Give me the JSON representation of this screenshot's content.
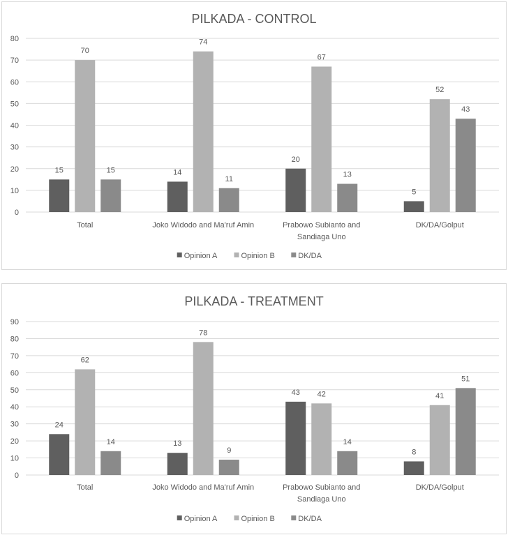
{
  "chart_data": [
    {
      "type": "bar",
      "title": "PILKADA - CONTROL",
      "categories": [
        [
          "Total"
        ],
        [
          "Joko Widodo and Ma'ruf Amin"
        ],
        [
          "Prabowo Subianto and",
          "Sandiaga Uno"
        ],
        [
          "DK/DA/Golput"
        ]
      ],
      "series": [
        {
          "name": "Opinion A",
          "color": "#5f5f5f",
          "values": [
            15,
            14,
            20,
            5
          ]
        },
        {
          "name": "Opinion B",
          "color": "#b2b2b2",
          "values": [
            70,
            74,
            67,
            52
          ]
        },
        {
          "name": "DK/DA",
          "color": "#8a8a8a",
          "values": [
            15,
            11,
            13,
            43
          ]
        }
      ],
      "ylim": [
        0,
        80
      ],
      "yticks": [
        0,
        10,
        20,
        30,
        40,
        50,
        60,
        70,
        80
      ],
      "grid": true,
      "legend": "bottom"
    },
    {
      "type": "bar",
      "title": "PILKADA - TREATMENT",
      "categories": [
        [
          "Total"
        ],
        [
          "Joko Widodo and Ma'ruf Amin"
        ],
        [
          "Prabowo Subianto and",
          "Sandiaga Uno"
        ],
        [
          "DK/DA/Golput"
        ]
      ],
      "series": [
        {
          "name": "Opinion A",
          "color": "#5f5f5f",
          "values": [
            24,
            13,
            43,
            8
          ]
        },
        {
          "name": "Opinion B",
          "color": "#b2b2b2",
          "values": [
            62,
            78,
            42,
            41
          ]
        },
        {
          "name": "DK/DA",
          "color": "#8a8a8a",
          "values": [
            14,
            9,
            14,
            51
          ]
        }
      ],
      "ylim": [
        0,
        90
      ],
      "yticks": [
        0,
        10,
        20,
        30,
        40,
        50,
        60,
        70,
        80,
        90
      ],
      "grid": true,
      "legend": "bottom"
    }
  ]
}
